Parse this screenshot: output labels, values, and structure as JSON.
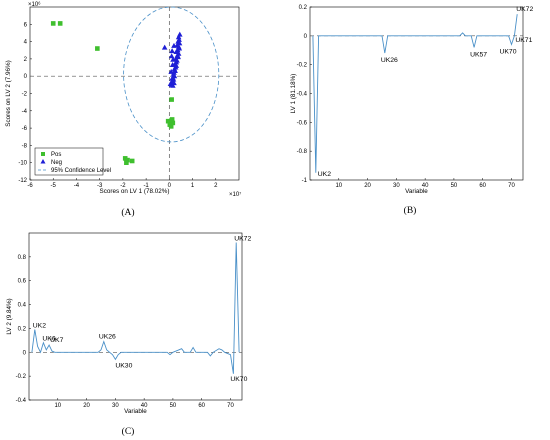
{
  "colors": {
    "pos": "#3fbf2e",
    "neg": "#1f1fd6",
    "line": "#4a90c8",
    "axis": "#000000",
    "ellipse": "#4a90c8"
  },
  "chart_data": [
    {
      "panel_label": "(A)",
      "type": "scatter",
      "xlabel": "Scores on LV 1 (78.02%)",
      "ylabel": "Scores on LV 2 (7.96%)",
      "x_exponent": "×10⁷",
      "y_exponent": "×10⁶",
      "xlim": [
        -6,
        3
      ],
      "ylim": [
        -12,
        8
      ],
      "x_ticks": [
        -6,
        -5,
        -4,
        -3,
        -2,
        -1,
        0,
        1,
        2
      ],
      "y_ticks": [
        -12,
        -10,
        -8,
        -6,
        -4,
        -2,
        0,
        2,
        4,
        6
      ],
      "x_tick_labels": [
        "-6",
        "-5",
        "-4",
        "-3",
        "-2",
        "-1",
        "0",
        "1",
        "2"
      ],
      "y_tick_labels": [
        "-12",
        "-10",
        "-8",
        "-6",
        "-4",
        "-2",
        "0",
        "2",
        "4",
        "6"
      ],
      "legend": {
        "position": "bottom-left",
        "entries": [
          "Pos",
          "Neg",
          "95% Confidence Level"
        ]
      },
      "ellipse": {
        "center": [
          0.08,
          0.2
        ],
        "rx": 2.05,
        "ry": 7.8
      },
      "series": [
        {
          "name": "Pos",
          "marker": "square",
          "x": [
            -5.0,
            -4.7,
            -3.1,
            -1.9,
            -1.85,
            -1.6,
            -1.8,
            0.1,
            0.12,
            -0.05,
            0.02,
            0.08,
            0.15,
            0.1
          ],
          "y": [
            6.1,
            6.1,
            3.2,
            -9.5,
            -10.0,
            -9.8,
            -9.7,
            -2.7,
            -5.0,
            -5.2,
            -5.6,
            -5.8,
            -5.4,
            -5.1
          ]
        },
        {
          "name": "Neg",
          "marker": "triangle",
          "x": [
            -0.2,
            0.45,
            0.4,
            0.42,
            0.38,
            0.44,
            0.35,
            0.4,
            0.43,
            0.36,
            0.3,
            0.4,
            0.35,
            0.38,
            0.28,
            0.33,
            0.3,
            0.25,
            0.3,
            0.27,
            0.22,
            0.25,
            0.2,
            0.18,
            0.22,
            0.15,
            0.18,
            0.12,
            0.2,
            0.1,
            0.15,
            0.12,
            0.08,
            0.14,
            0.1,
            0.2,
            0.05,
            0.16,
            0.12
          ],
          "y": [
            3.3,
            4.8,
            4.5,
            4.2,
            4.0,
            3.8,
            3.6,
            3.4,
            3.2,
            3.0,
            2.8,
            2.6,
            2.4,
            2.2,
            2.0,
            1.8,
            1.6,
            1.4,
            1.2,
            1.0,
            0.8,
            0.6,
            0.4,
            0.2,
            0.0,
            -0.2,
            -0.4,
            -0.6,
            -0.8,
            -1.0,
            -1.1,
            -0.3,
            0.5,
            1.3,
            2.3,
            3.5,
            -0.9,
            1.9,
            2.9
          ]
        }
      ]
    },
    {
      "panel_label": "(B)",
      "type": "line",
      "xlabel": "Variable",
      "ylabel": "LV 1 (81.18%)",
      "xlim": [
        0,
        74
      ],
      "ylim": [
        -1,
        0.2
      ],
      "x_ticks": [
        10,
        20,
        30,
        40,
        50,
        60,
        70
      ],
      "y_ticks": [
        -1,
        -0.8,
        -0.6,
        -0.4,
        -0.2,
        0,
        0.2
      ],
      "x_tick_labels": [
        "10",
        "20",
        "30",
        "40",
        "50",
        "60",
        "70"
      ],
      "y_tick_labels": [
        "-1",
        "-0.8",
        "-0.6",
        "-0.4",
        "-0.2",
        "0",
        "0.2"
      ],
      "x": [
        1,
        2,
        3,
        4,
        5,
        25,
        26,
        27,
        52,
        53,
        54,
        56,
        57,
        58,
        69,
        70,
        71,
        72
      ],
      "y": [
        0,
        -0.95,
        0,
        0,
        0,
        0,
        -0.12,
        0,
        0,
        0.02,
        0,
        0,
        -0.08,
        0,
        0,
        -0.06,
        0.0,
        0.15
      ],
      "annotations": [
        {
          "text": "UK2",
          "x": 2,
          "y": -0.95
        },
        {
          "text": "UK26",
          "x": 26,
          "y": -0.12
        },
        {
          "text": "UK57",
          "x": 57,
          "y": -0.08
        },
        {
          "text": "UK70",
          "x": 70,
          "y": -0.06
        },
        {
          "text": "UK71",
          "x": 71,
          "y": 0.0
        },
        {
          "text": "UK72",
          "x": 72,
          "y": 0.15
        }
      ]
    },
    {
      "panel_label": "(C)",
      "type": "line",
      "xlabel": "Variable",
      "ylabel": "LV 2 (9.84%)",
      "xlim": [
        0,
        74
      ],
      "ylim": [
        -0.4,
        1.0
      ],
      "x_ticks": [
        10,
        20,
        30,
        40,
        50,
        60,
        70
      ],
      "y_ticks": [
        -0.4,
        -0.2,
        0,
        0.2,
        0.4,
        0.6,
        0.8
      ],
      "x_tick_labels": [
        "10",
        "20",
        "30",
        "40",
        "50",
        "60",
        "70"
      ],
      "y_tick_labels": [
        "-0.4",
        "-0.2",
        "0",
        "0.2",
        "0.4",
        "0.6",
        "0.8"
      ],
      "x": [
        1,
        2,
        3,
        4,
        5,
        6,
        7,
        8,
        9,
        10,
        24,
        25,
        26,
        27,
        28,
        29,
        30,
        31,
        32,
        48,
        49,
        50,
        52,
        53,
        54,
        56,
        57,
        58,
        62,
        63,
        64,
        66,
        67,
        68,
        70,
        71,
        72,
        73
      ],
      "y": [
        0,
        0.19,
        0.05,
        0,
        0.08,
        0.02,
        0.06,
        0.01,
        0,
        0,
        0,
        0.02,
        0.09,
        0.02,
        0,
        -0.02,
        -0.06,
        -0.02,
        0,
        0,
        -0.02,
        0,
        0.02,
        0.03,
        0,
        0,
        0.04,
        0,
        0,
        -0.03,
        0,
        0.03,
        0.02,
        0,
        -0.02,
        -0.18,
        0.92,
        0
      ],
      "annotations": [
        {
          "text": "UK2",
          "x": 2,
          "y": 0.19
        },
        {
          "text": "UK6",
          "x": 5,
          "y": 0.08
        },
        {
          "text": "UK7",
          "x": 7,
          "y": 0.06
        },
        {
          "text": "UK26",
          "x": 26,
          "y": 0.09
        },
        {
          "text": "UK30",
          "x": 30,
          "y": -0.06
        },
        {
          "text": "UK70",
          "x": 71,
          "y": -0.18
        },
        {
          "text": "UK72",
          "x": 72,
          "y": 0.92
        }
      ]
    }
  ]
}
